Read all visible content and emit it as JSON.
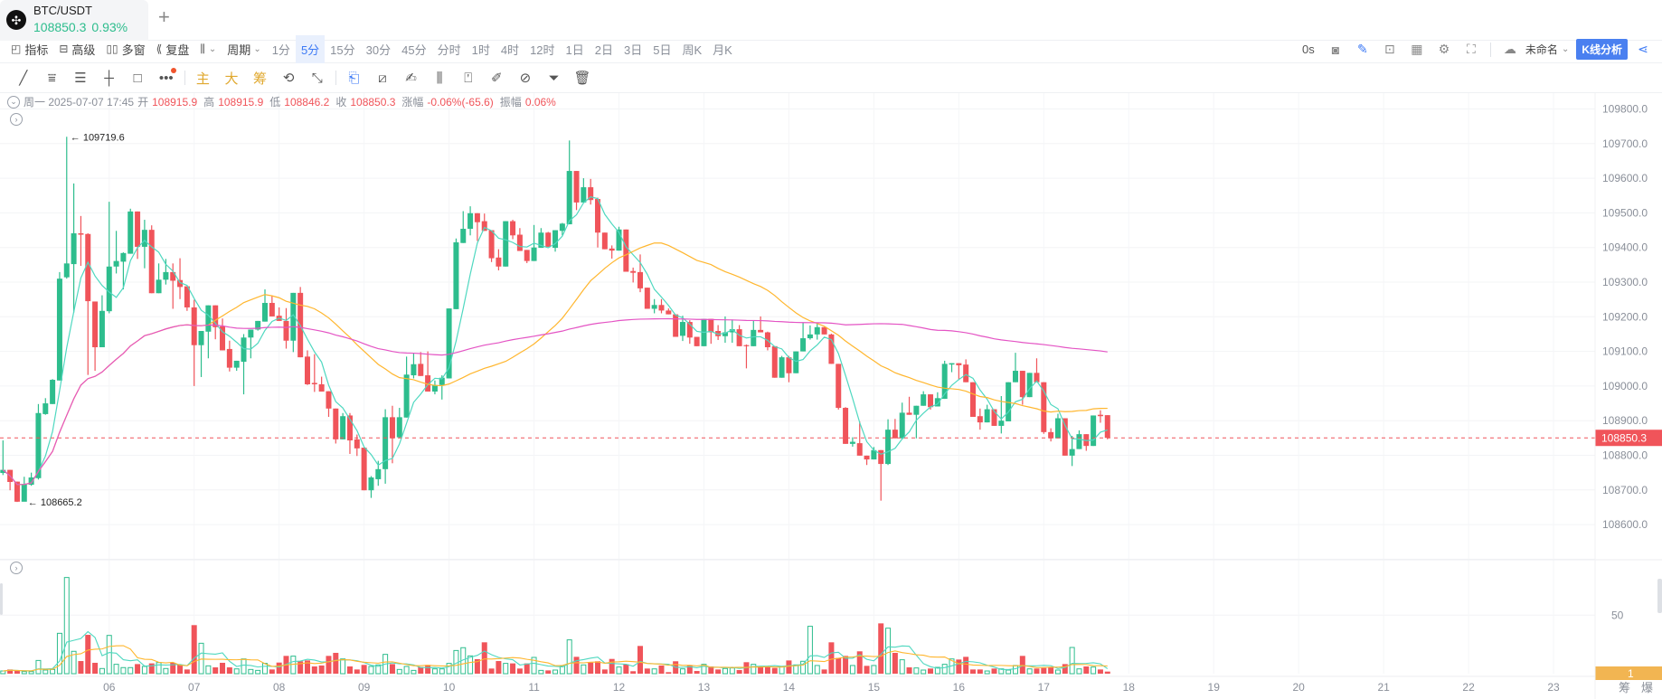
{
  "tab": {
    "symbol": "BTC/USDT",
    "price": "108850.3",
    "change": "0.93%",
    "add_label": "+"
  },
  "toolbar": {
    "indicators": "指标",
    "advanced": "高级",
    "multi_window": "多窗",
    "replay": "复盘",
    "period": "周期",
    "periods": [
      "1分",
      "5分",
      "15分",
      "30分",
      "45分",
      "分时",
      "1时",
      "4时",
      "12时",
      "1日",
      "2日",
      "3日",
      "5日",
      "周K",
      "月K"
    ],
    "active_period": "5分",
    "countdown": "0s",
    "layout_name": "未命名",
    "analysis_button": "K线分析"
  },
  "drawing_tools": {
    "main": "主",
    "big": "大",
    "chips": "筹"
  },
  "info": {
    "weekday_date": "周一 2025-07-07 17:45",
    "open_label": "开",
    "open": "108915.9",
    "high_label": "高",
    "high": "108915.9",
    "low_label": "低",
    "low": "108846.2",
    "close_label": "收",
    "close": "108850.3",
    "change_label": "涨幅",
    "change": "-0.06%(-65.6)",
    "amplitude_label": "振幅",
    "amplitude": "0.06%"
  },
  "bottom": {
    "chips_label": "筹",
    "liquidation_label": "爆"
  },
  "colors": {
    "up": "#2dbd8d",
    "down": "#f0545a",
    "ma5": "#4fd8c0",
    "ma30": "#ffb62e",
    "ma120": "#e454c4",
    "accent": "#4a80f0",
    "volume_badge": "#f2b552"
  },
  "chart_data": {
    "type": "candlestick",
    "price_axis": {
      "ticks": [
        "109800.0",
        "109700.0",
        "109600.0",
        "109500.0",
        "109400.0",
        "109300.0",
        "109200.0",
        "109100.0",
        "109000.0",
        "108900.0",
        "108800.0",
        "108700.0",
        "108600.0"
      ],
      "range": [
        108500,
        109850
      ]
    },
    "last_price": "108850.3",
    "max_label": "109719.6",
    "min_label": "108665.2",
    "date_ticks": [
      "06",
      "07",
      "08",
      "09",
      "10",
      "11",
      "12",
      "13",
      "14",
      "15",
      "16",
      "17",
      "18",
      "19",
      "20",
      "21",
      "22",
      "23"
    ],
    "volume_axis": {
      "ticks": [
        "50"
      ],
      "badge": "1"
    },
    "ma_periods": [
      5,
      30,
      120
    ],
    "volume_ma_periods": [
      5,
      10
    ],
    "ohlc": [
      [
        108749,
        108843,
        108743,
        108758
      ],
      [
        108758,
        108758,
        108699,
        108723
      ],
      [
        108724,
        108724,
        108665.2,
        108666
      ],
      [
        108666,
        108738,
        108668,
        108717
      ],
      [
        108715,
        108750,
        108712,
        108736
      ],
      [
        108734,
        108948,
        108730,
        108922
      ],
      [
        108919,
        108965,
        108917,
        108950
      ],
      [
        108948,
        109020,
        108948,
        109018
      ],
      [
        109016,
        109329,
        109016,
        109310
      ],
      [
        109314,
        109719.6,
        109310,
        109354
      ],
      [
        109352,
        109585,
        109212,
        109441
      ],
      [
        109441,
        109491,
        109347,
        109437
      ],
      [
        109439,
        109441,
        109032,
        109245
      ],
      [
        109244,
        109244,
        109044,
        109112
      ],
      [
        109112,
        109262,
        109112,
        109217
      ],
      [
        109216,
        109532,
        109210,
        109345
      ],
      [
        109345,
        109448,
        109325,
        109361
      ],
      [
        109359,
        109386,
        109279,
        109384
      ],
      [
        109382,
        109512,
        109382,
        109504
      ],
      [
        109504,
        109504,
        109367,
        109402
      ],
      [
        109402,
        109480,
        109340,
        109451
      ],
      [
        109451,
        109464,
        109268,
        109268
      ],
      [
        109268,
        109354,
        109268,
        109307
      ],
      [
        109307,
        109367,
        109293,
        109329
      ],
      [
        109329,
        109354,
        109223,
        109304
      ],
      [
        109306,
        109369,
        109251,
        109286
      ],
      [
        109288,
        109288,
        109217,
        109227
      ],
      [
        109227,
        109249,
        109000,
        109118
      ],
      [
        109118,
        109159,
        109026,
        109159
      ],
      [
        109157,
        109233,
        109080,
        109233
      ],
      [
        109233,
        109233,
        109135,
        109170
      ],
      [
        109172,
        109195,
        109103,
        109103
      ],
      [
        109107,
        109131,
        109042,
        109053
      ],
      [
        109053,
        109073,
        109044,
        109073
      ],
      [
        109070,
        109150,
        108976,
        109140
      ],
      [
        109140,
        109163,
        109080,
        109163
      ],
      [
        109163,
        109188,
        109160,
        109188
      ],
      [
        109186,
        109279,
        109186,
        109240
      ],
      [
        109240,
        109260,
        109201,
        109201
      ],
      [
        109203,
        109227,
        109188,
        109188
      ],
      [
        109188,
        109225,
        109108,
        109131
      ],
      [
        109131,
        109269,
        109098,
        109269
      ],
      [
        109269,
        109286,
        109083,
        109083
      ],
      [
        109085,
        109103,
        109003,
        109005
      ],
      [
        109009,
        109092,
        108983,
        109005
      ],
      [
        109005,
        109027,
        108984,
        108984
      ],
      [
        108985,
        108985,
        108911,
        108935
      ],
      [
        108935,
        108935,
        108834,
        108846
      ],
      [
        108846,
        108922,
        108846,
        108913
      ],
      [
        108915,
        108922,
        108804,
        108843
      ],
      [
        108846,
        108860,
        108798,
        108820
      ],
      [
        108822,
        108822,
        108699,
        108699
      ],
      [
        108699,
        108740,
        108677,
        108736
      ],
      [
        108731,
        108784,
        108712,
        108760
      ],
      [
        108760,
        108933,
        108718,
        108910
      ],
      [
        108910,
        108943,
        108777,
        108849
      ],
      [
        108852,
        108937,
        108849,
        108910
      ],
      [
        108909,
        109085,
        108909,
        109033
      ],
      [
        109031,
        109094,
        109022,
        109063
      ],
      [
        109064,
        109098,
        109029,
        109029
      ],
      [
        109031,
        109100,
        108984,
        108984
      ],
      [
        108984,
        109016,
        108976,
        109003
      ],
      [
        109003,
        109031,
        108961,
        109024
      ],
      [
        109022,
        109224,
        109022,
        109224
      ],
      [
        109222,
        109426,
        109222,
        109415
      ],
      [
        109413,
        109505,
        109413,
        109454
      ],
      [
        109454,
        109519,
        109435,
        109499
      ],
      [
        109499,
        109499,
        109419,
        109473
      ],
      [
        109476,
        109498,
        109448,
        109448
      ],
      [
        109450,
        109450,
        109358,
        109369
      ],
      [
        109371,
        109395,
        109334,
        109345
      ],
      [
        109345,
        109476,
        109345,
        109476
      ],
      [
        109476,
        109480,
        109424,
        109435
      ],
      [
        109437,
        109456,
        109390,
        109390
      ],
      [
        109393,
        109393,
        109355,
        109361
      ],
      [
        109361,
        109465,
        109361,
        109400
      ],
      [
        109399,
        109456,
        109399,
        109443
      ],
      [
        109443,
        109445,
        109402,
        109402
      ],
      [
        109399,
        109450,
        109388,
        109450
      ],
      [
        109448,
        109471,
        109435,
        109469
      ],
      [
        109467,
        109709,
        109467,
        109621
      ],
      [
        109621,
        109621,
        109508,
        109530
      ],
      [
        109530,
        109600,
        109530,
        109574
      ],
      [
        109574,
        109598,
        109524,
        109537
      ],
      [
        109540,
        109544,
        109400,
        109443
      ],
      [
        109443,
        109443,
        109395,
        109395
      ],
      [
        109397,
        109406,
        109368,
        109391
      ],
      [
        109391,
        109460,
        109391,
        109452
      ],
      [
        109452,
        109452,
        109330,
        109330
      ],
      [
        109332,
        109342,
        109299,
        109327
      ],
      [
        109329,
        109380,
        109271,
        109282
      ],
      [
        109284,
        109284,
        109223,
        109223
      ],
      [
        109223,
        109251,
        109210,
        109234
      ],
      [
        109234,
        109251,
        109210,
        109218
      ],
      [
        109218,
        109224,
        109207,
        109207
      ],
      [
        109207,
        109207,
        109142,
        109142
      ],
      [
        109145,
        109203,
        109130,
        109185
      ],
      [
        109185,
        109190,
        109122,
        109140
      ],
      [
        109142,
        109142,
        109115,
        109115
      ],
      [
        109115,
        109194,
        109115,
        109194
      ],
      [
        109194,
        109194,
        109122,
        109155
      ],
      [
        109159,
        109176,
        109133,
        109144
      ],
      [
        109144,
        109201,
        109125,
        109155
      ],
      [
        109155,
        109192,
        109125,
        109164
      ],
      [
        109164,
        109176,
        109115,
        109115
      ],
      [
        109118,
        109120,
        109051,
        109115
      ],
      [
        109115,
        109190,
        109115,
        109162
      ],
      [
        109162,
        109201,
        109155,
        109155
      ],
      [
        109155,
        109157,
        109103,
        109112
      ],
      [
        109115,
        109115,
        109024,
        109024
      ],
      [
        109024,
        109087,
        109024,
        109083
      ],
      [
        109083,
        109087,
        109011,
        109037
      ],
      [
        109037,
        109100,
        109037,
        109100
      ],
      [
        109100,
        109183,
        109100,
        109138
      ],
      [
        109138,
        109175,
        109134,
        109149
      ],
      [
        109149,
        109182,
        109134,
        109170
      ],
      [
        109170,
        109170,
        109149,
        109149
      ],
      [
        109149,
        109151,
        109064,
        109064
      ],
      [
        109064,
        109064,
        108932,
        108937
      ],
      [
        108937,
        108939,
        108833,
        108833
      ],
      [
        108833,
        108852,
        108825,
        108839
      ],
      [
        108835,
        108898,
        108799,
        108799
      ],
      [
        108799,
        108799,
        108772,
        108788
      ],
      [
        108788,
        108824,
        108788,
        108815
      ],
      [
        108815,
        108815,
        108669,
        108775
      ],
      [
        108775,
        108904,
        108772,
        108874
      ],
      [
        108874,
        108905,
        108849,
        108849
      ],
      [
        108849,
        108952,
        108849,
        108923
      ],
      [
        108923,
        108969,
        108917,
        108917
      ],
      [
        108917,
        108943,
        108849,
        108943
      ],
      [
        108943,
        108985,
        108943,
        108976
      ],
      [
        108976,
        108976,
        108932,
        108939
      ],
      [
        108941,
        108982,
        108941,
        108965
      ],
      [
        108963,
        109073,
        108963,
        109064
      ],
      [
        109062,
        109066,
        109040,
        109066
      ],
      [
        109066,
        109066,
        109018,
        109060
      ],
      [
        109062,
        109077,
        109011,
        109011
      ],
      [
        109011,
        109011,
        108911,
        108911
      ],
      [
        108913,
        108935,
        108874,
        108895
      ],
      [
        108895,
        108946,
        108895,
        108933
      ],
      [
        108933,
        108933,
        108885,
        108885
      ],
      [
        108885,
        108971,
        108863,
        108900
      ],
      [
        108898,
        109011,
        108898,
        109011
      ],
      [
        109011,
        109096,
        109011,
        109044
      ],
      [
        109044,
        109044,
        108946,
        108968
      ],
      [
        108968,
        109038,
        108968,
        109038
      ],
      [
        109038,
        109080,
        109011,
        109011
      ],
      [
        109011,
        109011,
        108862,
        108867
      ],
      [
        108867,
        108878,
        108840,
        108849
      ],
      [
        108849,
        108920,
        108849,
        108907
      ],
      [
        108907,
        108907,
        108799,
        108799
      ],
      [
        108799,
        108856,
        108769,
        108818
      ],
      [
        108818,
        108872,
        108818,
        108861
      ],
      [
        108861,
        108861,
        108813,
        108827
      ],
      [
        108827,
        108915,
        108827,
        108915
      ],
      [
        108917,
        108930,
        108894,
        108913
      ],
      [
        108915.9,
        108915.9,
        108846.2,
        108850.3
      ]
    ],
    "volume": [
      2.3,
      3.6,
      2.3,
      1.8,
      1.8,
      11.3,
      3.1,
      3.6,
      34.5,
      82.2,
      19.1,
      10.8,
      33.2,
      9.3,
      4.4,
      32.7,
      8,
      5.2,
      5.2,
      8.2,
      6.2,
      8.8,
      9.5,
      4.4,
      9.3,
      7.5,
      3.6,
      41.5,
      26,
      6.7,
      5.4,
      9.3,
      5.4,
      4.1,
      12.6,
      3.6,
      2.8,
      8.8,
      3.6,
      9.5,
      15.2,
      15,
      10.6,
      11.3,
      6.2,
      7,
      15.2,
      17.8,
      12.6,
      6.2,
      3.6,
      7.5,
      6.2,
      7.5,
      16.5,
      8.2,
      3.6,
      6.2,
      2.8,
      5.7,
      7.5,
      4.1,
      4.1,
      8.8,
      19.8,
      22.2,
      15.2,
      12.4,
      26.8,
      4.4,
      10.8,
      8.8,
      8.8,
      4.4,
      8.8,
      13.9,
      2.8,
      2.8,
      3.1,
      6.2,
      28.9,
      14.4,
      7.5,
      9.5,
      10.6,
      3.6,
      12.6,
      5.7,
      8,
      2.1,
      23.7,
      4.4,
      4.1,
      7,
      1.3,
      10.6,
      4.1,
      7,
      2.3,
      8,
      6.2,
      3.6,
      4.4,
      4.9,
      3.1,
      9.8,
      8,
      6.2,
      5.7,
      4.9,
      6.2,
      11.3,
      7.5,
      10.6,
      40.5,
      7,
      3.6,
      26.8,
      13.4,
      15.2,
      7,
      19.1,
      6.7,
      7,
      43,
      38.9,
      17.8,
      11.9,
      5.4,
      4.9,
      3.1,
      4.4,
      5.4,
      8,
      12.6,
      12.1,
      14.4,
      3.6,
      3.6,
      2.3,
      4.4,
      4.1,
      3.1,
      7,
      15.2,
      4.1,
      4.4,
      4.9,
      5.7,
      3.1,
      8.2,
      22.4,
      4.1,
      6.2,
      5.7,
      3.6,
      1.8
    ]
  }
}
